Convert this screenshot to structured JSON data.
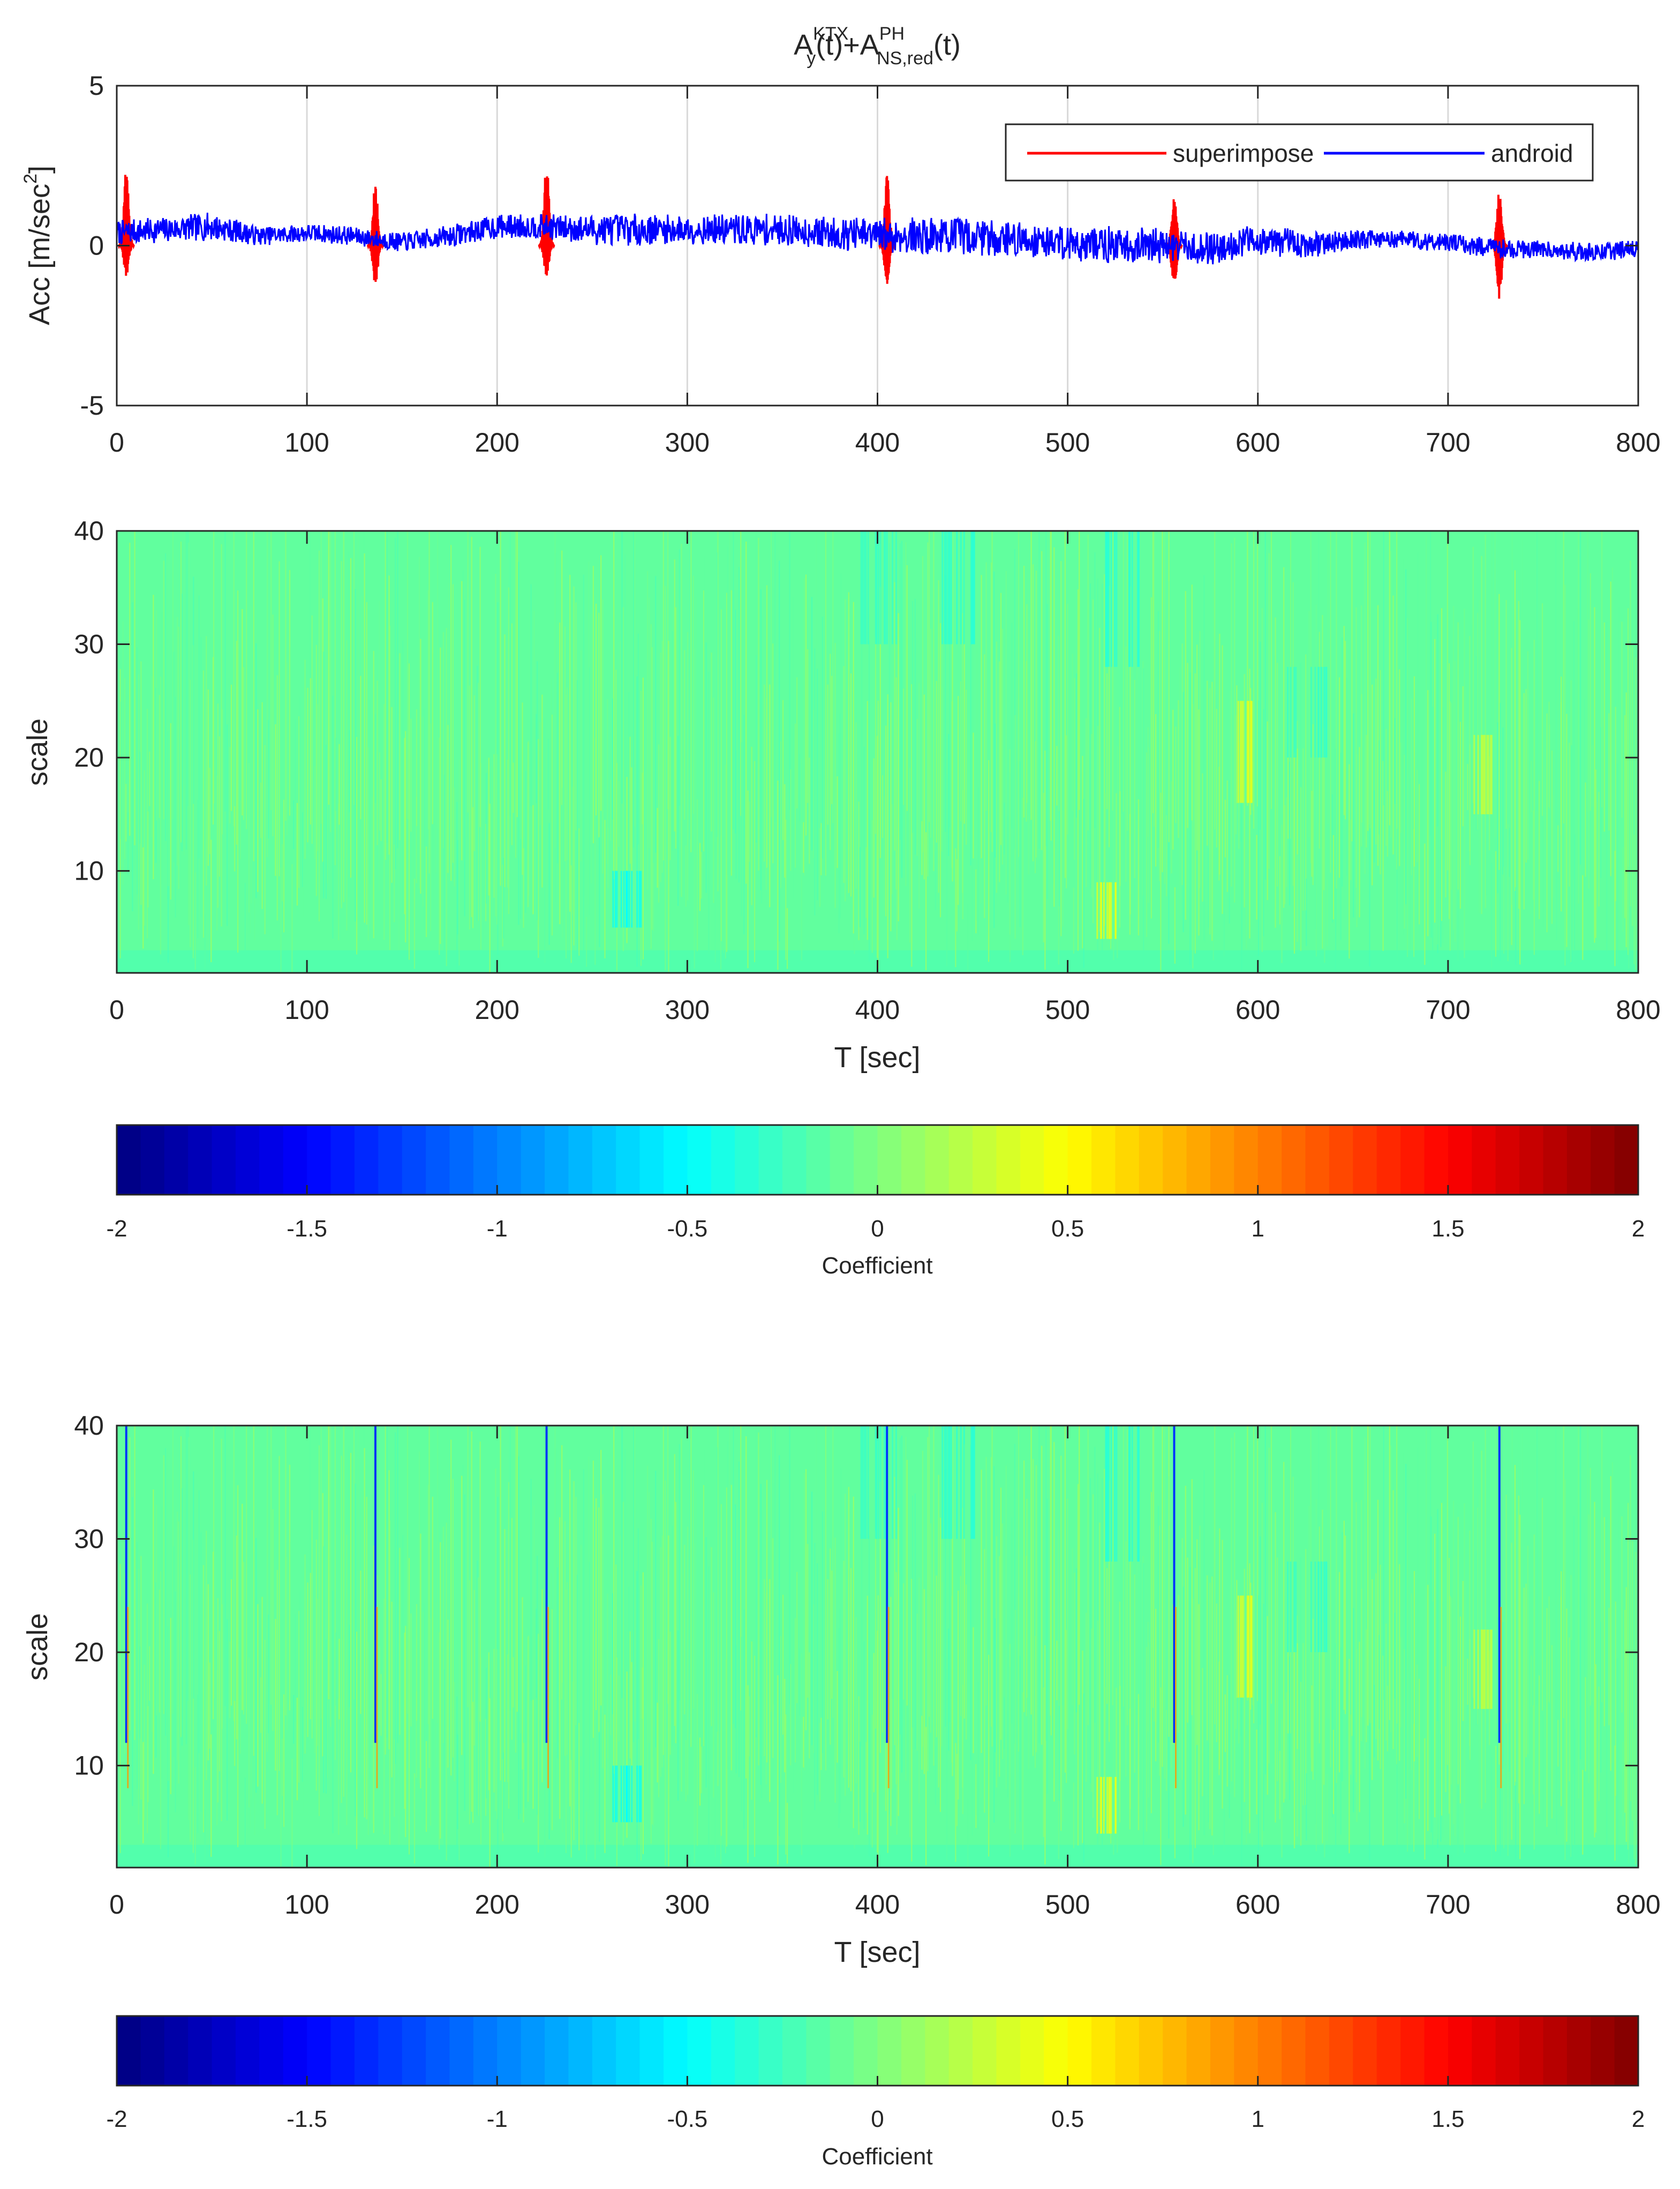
{
  "chart_data": [
    {
      "type": "line",
      "title": {
        "base1": "A",
        "sup1": "KTX",
        "sub1": "y",
        "mid": "(t)+A",
        "sup2": "PH",
        "sub2": "NS,red",
        "end": "(t)"
      },
      "xlabel": "",
      "ylabel": {
        "main": "Acc [m/sec",
        "sup": "2",
        "end": "]"
      },
      "xlim": [
        0,
        800
      ],
      "ylim": [
        -5,
        5
      ],
      "xticks": [
        "0",
        "100",
        "200",
        "300",
        "400",
        "500",
        "600",
        "700",
        "800"
      ],
      "yticks": [
        "-5",
        "0",
        "5"
      ],
      "grid": "vertical",
      "legend_position": "top-right",
      "series": [
        {
          "name": "superimpose",
          "color": "#ff0000",
          "spike_times_sec": [
            5,
            136,
            226,
            405,
            556,
            727
          ],
          "spike_max": [
            2.5,
            2.1,
            2.6,
            2.3,
            1.7,
            1.8
          ],
          "spike_min": [
            -1.0,
            -1.3,
            -1.0,
            -1.2,
            -1.4,
            -1.7
          ]
        },
        {
          "name": "android",
          "color": "#0000ff",
          "x": [
            0,
            25,
            50,
            75,
            100,
            125,
            150,
            175,
            200,
            225,
            250,
            275,
            300,
            325,
            350,
            375,
            400,
            425,
            450,
            475,
            500,
            525,
            550,
            575,
            600,
            625,
            650,
            675,
            700,
            725,
            750,
            775,
            800
          ],
          "center": [
            0.4,
            0.5,
            0.6,
            0.3,
            0.4,
            0.3,
            0.1,
            0.3,
            0.6,
            0.6,
            0.5,
            0.5,
            0.5,
            0.5,
            0.5,
            0.4,
            0.3,
            0.3,
            0.3,
            0.2,
            0.1,
            0.0,
            0.0,
            -0.1,
            0.2,
            0.0,
            0.2,
            0.2,
            0.1,
            -0.1,
            -0.1,
            -0.2,
            -0.1
          ],
          "amplitude": [
            0.4,
            0.4,
            0.45,
            0.3,
            0.3,
            0.3,
            0.3,
            0.35,
            0.4,
            0.4,
            0.5,
            0.5,
            0.45,
            0.5,
            0.5,
            0.5,
            0.6,
            0.6,
            0.65,
            0.6,
            0.6,
            0.6,
            0.55,
            0.5,
            0.5,
            0.45,
            0.3,
            0.3,
            0.3,
            0.3,
            0.3,
            0.3,
            0.3
          ]
        }
      ]
    },
    {
      "type": "heatmap",
      "xlabel": "T [sec]",
      "ylabel": "scale",
      "xlim": [
        0,
        800
      ],
      "ylim": [
        1,
        40
      ],
      "xticks": [
        "0",
        "100",
        "200",
        "300",
        "400",
        "500",
        "600",
        "700",
        "800"
      ],
      "yticks": [
        "10",
        "20",
        "30",
        "40"
      ],
      "feature_vertical_streaks_sec": [],
      "dark_patches": [
        {
          "t": 265,
          "scale_from": 5,
          "scale_to": 10,
          "value": -0.5
        },
        {
          "t": 400,
          "scale_from": 30,
          "scale_to": 40,
          "value": -0.3
        },
        {
          "t": 440,
          "scale_from": 30,
          "scale_to": 40,
          "value": -0.35
        },
        {
          "t": 530,
          "scale_from": 28,
          "scale_to": 40,
          "value": -0.35
        },
        {
          "t": 625,
          "scale_from": 20,
          "scale_to": 28,
          "value": -0.3
        }
      ],
      "bright_patches": [
        {
          "t": 520,
          "scale_from": 4,
          "scale_to": 9,
          "value": 0.45
        },
        {
          "t": 593,
          "scale_from": 16,
          "scale_to": 25,
          "value": 0.4
        },
        {
          "t": 718,
          "scale_from": 15,
          "scale_to": 22,
          "value": 0.3
        }
      ],
      "colorbar": {
        "label": "Coefficient",
        "ticks": [
          "-2",
          "-1.5",
          "-1",
          "-0.5",
          "0",
          "0.5",
          "1",
          "1.5",
          "2"
        ],
        "range": [
          -2,
          2
        ]
      }
    },
    {
      "type": "heatmap",
      "xlabel": "T [sec]",
      "ylabel": "scale",
      "xlim": [
        0,
        800
      ],
      "ylim": [
        1,
        40
      ],
      "xticks": [
        "0",
        "100",
        "200",
        "300",
        "400",
        "500",
        "600",
        "700",
        "800"
      ],
      "yticks": [
        "10",
        "20",
        "30",
        "40"
      ],
      "feature_vertical_streaks_sec": [
        5,
        136,
        226,
        405,
        556,
        727
      ],
      "dark_patches": [
        {
          "t": 265,
          "scale_from": 5,
          "scale_to": 10,
          "value": -0.5
        },
        {
          "t": 400,
          "scale_from": 30,
          "scale_to": 40,
          "value": -0.3
        },
        {
          "t": 440,
          "scale_from": 30,
          "scale_to": 40,
          "value": -0.35
        },
        {
          "t": 530,
          "scale_from": 28,
          "scale_to": 40,
          "value": -0.35
        },
        {
          "t": 625,
          "scale_from": 20,
          "scale_to": 28,
          "value": -0.3
        }
      ],
      "bright_patches": [
        {
          "t": 520,
          "scale_from": 4,
          "scale_to": 9,
          "value": 0.45
        },
        {
          "t": 593,
          "scale_from": 16,
          "scale_to": 25,
          "value": 0.4
        },
        {
          "t": 718,
          "scale_from": 15,
          "scale_to": 22,
          "value": 0.3
        }
      ],
      "colorbar": {
        "label": "Coefficient",
        "ticks": [
          "-2",
          "-1.5",
          "-1",
          "-0.5",
          "0",
          "0.5",
          "1",
          "1.5",
          "2"
        ],
        "range": [
          -2,
          2
        ]
      }
    }
  ]
}
